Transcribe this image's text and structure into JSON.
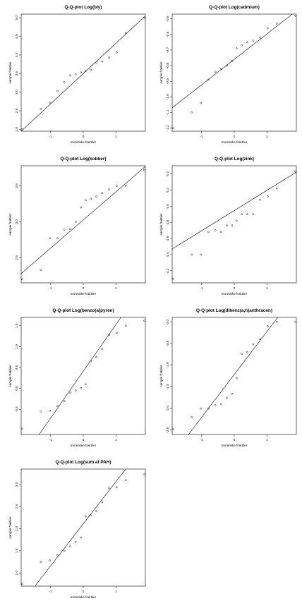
{
  "chart_data": [
    {
      "type": "scatter",
      "title": "Q-Q-plot Log(bly)",
      "xlabel": "teoretiske fraktiler",
      "ylabel": "sample fraktiler",
      "xlim": [
        -1.9,
        1.9
      ],
      "ylim": [
        1.95,
        5.1
      ],
      "xticks": [
        -1,
        0,
        1
      ],
      "yticks": [
        2.0,
        2.5,
        3.0,
        3.5,
        4.0,
        4.5,
        5.0
      ],
      "xtick_labels": [
        "-1",
        "0",
        "1"
      ],
      "ytick_labels": [
        "2.0",
        "2.5",
        "3.0",
        "3.5",
        "4.0",
        "4.5",
        "5.0"
      ],
      "points": {
        "x": [
          -1.87,
          -1.3,
          -1.02,
          -0.79,
          -0.58,
          -0.4,
          -0.23,
          -0.07,
          0.07,
          0.23,
          0.4,
          0.58,
          0.79,
          1.02,
          1.3,
          1.87
        ],
        "y": [
          2.0,
          2.55,
          2.72,
          3.03,
          3.27,
          3.45,
          3.48,
          3.53,
          3.57,
          3.6,
          3.8,
          3.83,
          3.93,
          4.07,
          4.59,
          5.0
        ]
      },
      "line": {
        "x": [
          -1.9,
          1.9
        ],
        "y": [
          1.95,
          5.05
        ]
      },
      "grid": false,
      "legend": "none"
    },
    {
      "type": "scatter",
      "title": "Q-Q-plot Log(cadmium)",
      "xlabel": "teoretiske fraktiler",
      "ylabel": "sample fraktiler",
      "xlim": [
        -1.9,
        1.9
      ],
      "ylim": [
        -1.22,
        -0.47
      ],
      "xticks": [
        -1,
        0,
        1
      ],
      "yticks": [
        -1.2,
        -1.1,
        -1.0,
        -0.9,
        -0.8,
        -0.7,
        -0.6,
        -0.5
      ],
      "xtick_labels": [
        "-1",
        "0",
        "1"
      ],
      "ytick_labels": [
        "-1.2",
        "-1.1",
        "-1.0",
        "-0.9",
        "-0.8",
        "-0.7",
        "-0.6",
        "-0.5"
      ],
      "points": {
        "x": [
          -1.87,
          -1.3,
          -1.02,
          -0.79,
          -0.58,
          -0.4,
          -0.23,
          -0.07,
          0.07,
          0.23,
          0.4,
          0.58,
          0.79,
          1.02,
          1.3,
          1.87
        ],
        "y": [
          -1.2,
          -1.1,
          -1.04,
          -0.89,
          -0.84,
          -0.82,
          -0.8,
          -0.77,
          -0.69,
          -0.67,
          -0.65,
          -0.64,
          -0.62,
          -0.56,
          -0.53,
          -0.48
        ]
      },
      "line": {
        "x": [
          -1.9,
          1.9
        ],
        "y": [
          -1.07,
          -0.45
        ]
      },
      "grid": false,
      "legend": "none"
    },
    {
      "type": "scatter",
      "title": "Q-Q-plot Log(kobber)",
      "xlabel": "teoretiske fraktiler",
      "ylabel": "sample fraktiler",
      "xlim": [
        -1.9,
        1.9
      ],
      "ylim": [
        2.15,
        3.78
      ],
      "xticks": [
        -1,
        0,
        1
      ],
      "yticks": [
        2.5,
        3.0,
        3.5
      ],
      "xtick_labels": [
        "-1",
        "0",
        "1"
      ],
      "ytick_labels": [
        "2.5",
        "3.0",
        "3.5"
      ],
      "points": {
        "x": [
          -1.87,
          -1.3,
          -1.02,
          -0.79,
          -0.58,
          -0.4,
          -0.23,
          -0.07,
          0.07,
          0.23,
          0.4,
          0.58,
          0.79,
          1.02,
          1.3,
          1.87
        ],
        "y": [
          2.2,
          2.33,
          2.77,
          2.77,
          2.89,
          2.9,
          3.0,
          3.2,
          3.3,
          3.32,
          3.35,
          3.4,
          3.45,
          3.5,
          3.5,
          3.72
        ]
      },
      "line": {
        "x": [
          -1.9,
          1.9
        ],
        "y": [
          2.28,
          3.77
        ]
      },
      "grid": false,
      "legend": "none"
    },
    {
      "type": "scatter",
      "title": "Q-Q-plot Log(zink)",
      "xlabel": "teoretiske fraktiler",
      "ylabel": "sample fraktiler",
      "xlim": [
        -1.9,
        1.9
      ],
      "ylim": [
        4.05,
        5.5
      ],
      "xticks": [
        -1,
        0,
        1
      ],
      "yticks": [
        4.2,
        4.4,
        4.6,
        4.8,
        5.0,
        5.2,
        5.4
      ],
      "xtick_labels": [
        "-1",
        "0",
        "1"
      ],
      "ytick_labels": [
        "4.2",
        "4.4",
        "4.6",
        "4.8",
        "5.0",
        "5.2",
        "5.4"
      ],
      "points": {
        "x": [
          -1.87,
          -1.3,
          -1.02,
          -0.79,
          -0.58,
          -0.4,
          -0.23,
          -0.07,
          0.07,
          0.23,
          0.4,
          0.58,
          0.79,
          1.02,
          1.3,
          1.87
        ],
        "y": [
          4.1,
          4.4,
          4.4,
          4.68,
          4.7,
          4.68,
          4.76,
          4.76,
          4.82,
          4.9,
          4.9,
          4.9,
          5.08,
          5.12,
          5.22,
          5.43
        ]
      },
      "line": {
        "x": [
          -1.9,
          1.9
        ],
        "y": [
          4.47,
          5.42
        ]
      },
      "grid": false,
      "legend": "none"
    },
    {
      "type": "scatter",
      "title": "Q-Q-plot Log(benzo(a)pyren)",
      "xlabel": "teoretiske fraktiler",
      "ylabel": "sample fraktiler",
      "xlim": [
        -1.9,
        1.9
      ],
      "ylim": [
        -1.1,
        1.7
      ],
      "xticks": [
        -1,
        0,
        1
      ],
      "yticks": [
        -0.5,
        0.0,
        0.5,
        1.0,
        1.5
      ],
      "xtick_labels": [
        "-1",
        "0",
        "1"
      ],
      "ytick_labels": [
        "-0.5",
        "0.0",
        "0.5",
        "1.0",
        "1.5"
      ],
      "points": {
        "x": [
          -1.87,
          -1.3,
          -1.02,
          -0.79,
          -0.58,
          -0.4,
          -0.23,
          -0.07,
          0.07,
          0.23,
          0.4,
          0.58,
          0.79,
          1.02,
          1.3,
          1.87
        ],
        "y": [
          -0.96,
          -0.55,
          -0.53,
          -0.42,
          -0.3,
          -0.1,
          -0.05,
          0.01,
          0.1,
          0.65,
          0.75,
          0.94,
          1.28,
          1.33,
          1.5,
          1.62
        ]
      },
      "line": {
        "x": [
          -1.35,
          1.15
        ],
        "y": [
          -1.1,
          1.7
        ]
      },
      "grid": false,
      "legend": "none"
    },
    {
      "type": "scatter",
      "title": "Q-Q-plot Log(dibenz(a,h)anthracen)",
      "xlabel": "teoretiske fraktiler",
      "ylabel": "sample fraktiler",
      "xlim": [
        -1.9,
        1.9
      ],
      "ylim": [
        -2.6,
        0.1
      ],
      "xticks": [
        -1,
        0,
        1
      ],
      "yticks": [
        -2.5,
        -2.0,
        -1.5,
        -1.0,
        -0.5,
        0.0
      ],
      "xtick_labels": [
        "-1",
        "0",
        "1"
      ],
      "ytick_labels": [
        "-2.5",
        "-2.0",
        "-1.5",
        "-1.0",
        "-0.5",
        "0.0"
      ],
      "points": {
        "x": [
          -1.87,
          -1.3,
          -1.02,
          -0.79,
          -0.58,
          -0.4,
          -0.23,
          -0.07,
          0.07,
          0.23,
          0.4,
          0.58,
          0.79,
          1.02,
          1.3,
          1.87
        ],
        "y": [
          -2.48,
          -2.2,
          -2.0,
          -2.0,
          -1.93,
          -1.9,
          -1.76,
          -1.66,
          -1.3,
          -0.74,
          -0.7,
          -0.52,
          -0.4,
          -0.1,
          0.0,
          0.0
        ]
      },
      "line": {
        "x": [
          -1.4,
          1.33
        ],
        "y": [
          -2.6,
          0.1
        ]
      },
      "grid": false,
      "legend": "none"
    },
    {
      "type": "scatter",
      "title": "Q-Q-plot Log(sum af PAH)",
      "xlabel": "teoretiske fraktiler",
      "ylabel": "sample fraktiler",
      "xlim": [
        -1.9,
        1.9
      ],
      "ylim": [
        0.7,
        3.35
      ],
      "xticks": [
        -1,
        0,
        1
      ],
      "yticks": [
        1.0,
        1.5,
        2.0,
        2.5,
        3.0
      ],
      "xtick_labels": [
        "-1",
        "0",
        "1"
      ],
      "ytick_labels": [
        "1.0",
        "1.5",
        "2.0",
        "2.5",
        "3.0"
      ],
      "points": {
        "x": [
          -1.87,
          -1.3,
          -1.02,
          -0.79,
          -0.58,
          -0.4,
          -0.23,
          -0.07,
          0.07,
          0.23,
          0.4,
          0.58,
          0.79,
          1.02,
          1.3,
          1.87
        ],
        "y": [
          0.75,
          1.25,
          1.28,
          1.4,
          1.5,
          1.6,
          1.7,
          1.8,
          2.28,
          2.3,
          2.4,
          2.6,
          2.92,
          2.94,
          3.1,
          3.23
        ]
      },
      "line": {
        "x": [
          -1.48,
          1.3
        ],
        "y": [
          0.7,
          3.35
        ]
      },
      "grid": false,
      "legend": "none"
    }
  ]
}
